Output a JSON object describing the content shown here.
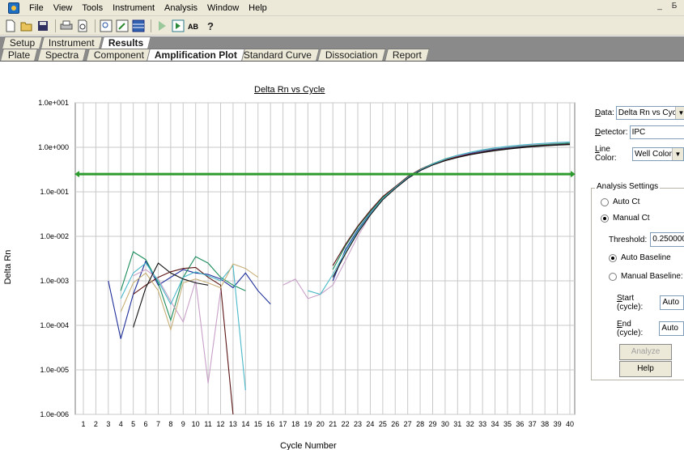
{
  "menu": [
    "File",
    "View",
    "Tools",
    "Instrument",
    "Analysis",
    "Window",
    "Help"
  ],
  "window_controls": [
    "_",
    "Б"
  ],
  "toolbar_icons": [
    "new-file-icon",
    "open-folder-icon",
    "save-icon",
    "print-icon",
    "print-preview-icon",
    "zoom-icon",
    "edit-icon",
    "grid-icon",
    "play-icon",
    "record-icon",
    "spell-icon",
    "help-icon"
  ],
  "tabs_top": [
    "Setup",
    "Instrument",
    "Results"
  ],
  "tabs_bottom": [
    "Plate",
    "Spectra",
    "Component",
    "Amplification Plot",
    "Standard Curve",
    "Dissociation",
    "Report"
  ],
  "active_tab_top": "Results",
  "active_tab_bottom": "Amplification Plot",
  "plot": {
    "title": "Delta Rn vs Cycle",
    "ylabel": "Delta Rn",
    "xlabel": "Cycle Number",
    "yticks": [
      "1.0e+001",
      "1.0e+000",
      "1.0e-001",
      "1.0e-002",
      "1.0e-003",
      "1.0e-004",
      "1.0e-005",
      "1.0e-006"
    ],
    "xticks": [
      "1",
      "2",
      "3",
      "4",
      "5",
      "6",
      "7",
      "8",
      "9",
      "10",
      "11",
      "12",
      "13",
      "14",
      "15",
      "16",
      "17",
      "18",
      "19",
      "20",
      "21",
      "22",
      "23",
      "24",
      "25",
      "26",
      "27",
      "28",
      "29",
      "30",
      "31",
      "32",
      "33",
      "34",
      "35",
      "36",
      "37",
      "38",
      "39",
      "40"
    ]
  },
  "panel": {
    "data_label": "Data:",
    "data_value": "Delta Rn vs Cycle",
    "detector_label": "Detector:",
    "detector_value": "IPC",
    "linecolor_label": "Line Color:",
    "linecolor_value": "Well Color",
    "group_title": "Analysis Settings",
    "auto_ct": "Auto Ct",
    "manual_ct": "Manual Ct",
    "ct_mode": "manual",
    "threshold_label": "Threshold:",
    "threshold_value": "0.2500000",
    "auto_baseline": "Auto Baseline",
    "manual_baseline": "Manual Baseline:",
    "baseline_mode": "auto",
    "start_label": "Start (cycle):",
    "start_value": "Auto",
    "end_label": "End (cycle):",
    "end_value": "Auto",
    "analyze_label": "Analyze",
    "help_label": "Help"
  },
  "chart_data": {
    "type": "line",
    "title": "Delta Rn vs Cycle",
    "xlabel": "Cycle Number",
    "ylabel": "Delta Rn",
    "y_scale": "log",
    "ylim": [
      1e-06,
      10
    ],
    "xlim": [
      1,
      40
    ],
    "grid": true,
    "threshold": 0.25,
    "threshold_color": "#2e9b2e",
    "series": [
      {
        "color": "#1f2f9a",
        "points": [
          [
            3,
            0.001
          ],
          [
            4,
            5e-05
          ],
          [
            5,
            0.0005
          ],
          [
            6,
            0.0028
          ],
          [
            7,
            0.0008
          ],
          [
            8,
            0.0012
          ],
          [
            9,
            0.0018
          ],
          [
            10,
            0.0015
          ],
          [
            11,
            0.0014
          ],
          [
            12,
            0.0011
          ],
          [
            13,
            0.0007
          ],
          [
            14,
            0.0015
          ],
          [
            15,
            0.0006
          ],
          [
            16,
            0.0003
          ],
          [
            21,
            0.001
          ],
          [
            22,
            0.005
          ],
          [
            23,
            0.014
          ],
          [
            24,
            0.033
          ],
          [
            25,
            0.07
          ],
          [
            26,
            0.12
          ],
          [
            27,
            0.2
          ],
          [
            28,
            0.3
          ],
          [
            29,
            0.41
          ],
          [
            30,
            0.53
          ],
          [
            31,
            0.64
          ],
          [
            32,
            0.73
          ],
          [
            33,
            0.82
          ],
          [
            34,
            0.9
          ],
          [
            35,
            0.97
          ],
          [
            36,
            1.03
          ],
          [
            37,
            1.08
          ],
          [
            38,
            1.13
          ],
          [
            39,
            1.17
          ],
          [
            40,
            1.2
          ]
        ]
      },
      {
        "color": "#1a8c5a",
        "points": [
          [
            4,
            0.0006
          ],
          [
            5,
            0.0045
          ],
          [
            6,
            0.003
          ],
          [
            7,
            0.0009
          ],
          [
            8,
            0.00013
          ],
          [
            9,
            0.0012
          ],
          [
            10,
            0.0035
          ],
          [
            11,
            0.0025
          ],
          [
            12,
            0.0012
          ],
          [
            13,
            0.0008
          ],
          [
            14,
            0.0006
          ],
          [
            21,
            0.0018
          ],
          [
            22,
            0.006
          ],
          [
            23,
            0.016
          ],
          [
            24,
            0.036
          ],
          [
            25,
            0.075
          ],
          [
            26,
            0.13
          ],
          [
            27,
            0.21
          ],
          [
            28,
            0.32
          ],
          [
            29,
            0.43
          ],
          [
            30,
            0.55
          ],
          [
            31,
            0.66
          ],
          [
            32,
            0.76
          ],
          [
            33,
            0.85
          ],
          [
            34,
            0.93
          ],
          [
            35,
            1.0
          ],
          [
            36,
            1.06
          ],
          [
            37,
            1.11
          ],
          [
            38,
            1.16
          ],
          [
            39,
            1.2
          ],
          [
            40,
            1.24
          ]
        ]
      },
      {
        "color": "#5a1414",
        "points": [
          [
            5,
            0.0005
          ],
          [
            6,
            0.0008
          ],
          [
            7,
            0.0012
          ],
          [
            8,
            0.0016
          ],
          [
            9,
            0.0019
          ],
          [
            10,
            0.002
          ],
          [
            11,
            0.0012
          ],
          [
            12,
            0.0008
          ],
          [
            13,
            1e-06
          ],
          [
            21,
            0.0022
          ],
          [
            22,
            0.0065
          ],
          [
            23,
            0.017
          ],
          [
            24,
            0.038
          ],
          [
            25,
            0.078
          ],
          [
            26,
            0.13
          ],
          [
            27,
            0.22
          ],
          [
            28,
            0.32
          ],
          [
            29,
            0.42
          ],
          [
            30,
            0.52
          ],
          [
            31,
            0.61
          ],
          [
            32,
            0.7
          ],
          [
            33,
            0.78
          ],
          [
            34,
            0.86
          ],
          [
            35,
            0.93
          ],
          [
            36,
            0.99
          ],
          [
            37,
            1.05
          ],
          [
            38,
            1.1
          ],
          [
            39,
            1.14
          ],
          [
            40,
            1.18
          ]
        ]
      },
      {
        "color": "#c8a0c8",
        "points": [
          [
            5,
            0.0013
          ],
          [
            6,
            0.0018
          ],
          [
            7,
            0.0011
          ],
          [
            8,
            0.00035
          ],
          [
            9,
            0.00012
          ],
          [
            10,
            0.001
          ],
          [
            11,
            5e-06
          ],
          [
            12,
            0.0006
          ],
          [
            17,
            0.0008
          ],
          [
            18,
            0.0011
          ],
          [
            19,
            0.0004
          ],
          [
            20,
            0.0005
          ],
          [
            21,
            0.0008
          ],
          [
            22,
            0.0028
          ],
          [
            23,
            0.01
          ],
          [
            24,
            0.03
          ],
          [
            25,
            0.068
          ],
          [
            26,
            0.12
          ],
          [
            27,
            0.2
          ],
          [
            28,
            0.31
          ],
          [
            29,
            0.42
          ],
          [
            30,
            0.54
          ],
          [
            31,
            0.65
          ],
          [
            32,
            0.76
          ],
          [
            33,
            0.86
          ],
          [
            34,
            0.95
          ],
          [
            35,
            1.02
          ],
          [
            36,
            1.09
          ],
          [
            37,
            1.15
          ],
          [
            38,
            1.2
          ],
          [
            39,
            1.25
          ],
          [
            40,
            1.3
          ]
        ]
      },
      {
        "color": "#48b8c8",
        "points": [
          [
            4,
            0.0004
          ],
          [
            5,
            0.0015
          ],
          [
            6,
            0.0025
          ],
          [
            7,
            0.001
          ],
          [
            8,
            0.0003
          ],
          [
            9,
            0.0012
          ],
          [
            10,
            0.0016
          ],
          [
            11,
            0.0013
          ],
          [
            12,
            0.001
          ],
          [
            13,
            0.0022
          ],
          [
            14,
            3.5e-06
          ],
          [
            19,
            0.0006
          ],
          [
            20,
            0.0005
          ],
          [
            21,
            0.0014
          ],
          [
            22,
            0.0045
          ],
          [
            23,
            0.013
          ],
          [
            24,
            0.032
          ],
          [
            25,
            0.07
          ],
          [
            26,
            0.125
          ],
          [
            27,
            0.21
          ],
          [
            28,
            0.31
          ],
          [
            29,
            0.42
          ],
          [
            30,
            0.54
          ],
          [
            31,
            0.66
          ],
          [
            32,
            0.77
          ],
          [
            33,
            0.88
          ],
          [
            34,
            0.97
          ],
          [
            35,
            1.05
          ],
          [
            36,
            1.12
          ],
          [
            37,
            1.18
          ],
          [
            38,
            1.23
          ],
          [
            39,
            1.28
          ],
          [
            40,
            1.32
          ]
        ]
      },
      {
        "color": "#c8b078",
        "points": [
          [
            4,
            0.0002
          ],
          [
            5,
            0.0009
          ],
          [
            6,
            0.0015
          ],
          [
            7,
            0.0006
          ],
          [
            8,
            8e-05
          ],
          [
            9,
            0.0009
          ],
          [
            10,
            0.0011
          ],
          [
            11,
            0.0009
          ],
          [
            12,
            0.0007
          ],
          [
            13,
            0.0024
          ],
          [
            14,
            0.0019
          ],
          [
            15,
            0.0012
          ]
        ]
      },
      {
        "color": "#101010",
        "points": [
          [
            5,
            9e-05
          ],
          [
            6,
            0.0007
          ],
          [
            7,
            0.0025
          ],
          [
            8,
            0.0015
          ],
          [
            9,
            0.0011
          ],
          [
            10,
            0.0009
          ],
          [
            11,
            0.0008
          ],
          [
            21,
            0.0012
          ],
          [
            22,
            0.004
          ],
          [
            23,
            0.012
          ],
          [
            24,
            0.03
          ],
          [
            25,
            0.066
          ],
          [
            26,
            0.118
          ],
          [
            27,
            0.2
          ],
          [
            28,
            0.3
          ],
          [
            29,
            0.4
          ],
          [
            30,
            0.5
          ],
          [
            31,
            0.59
          ],
          [
            32,
            0.68
          ],
          [
            33,
            0.76
          ],
          [
            34,
            0.84
          ],
          [
            35,
            0.91
          ],
          [
            36,
            0.97
          ],
          [
            37,
            1.03
          ],
          [
            38,
            1.08
          ],
          [
            39,
            1.12
          ],
          [
            40,
            1.15
          ]
        ]
      }
    ]
  }
}
